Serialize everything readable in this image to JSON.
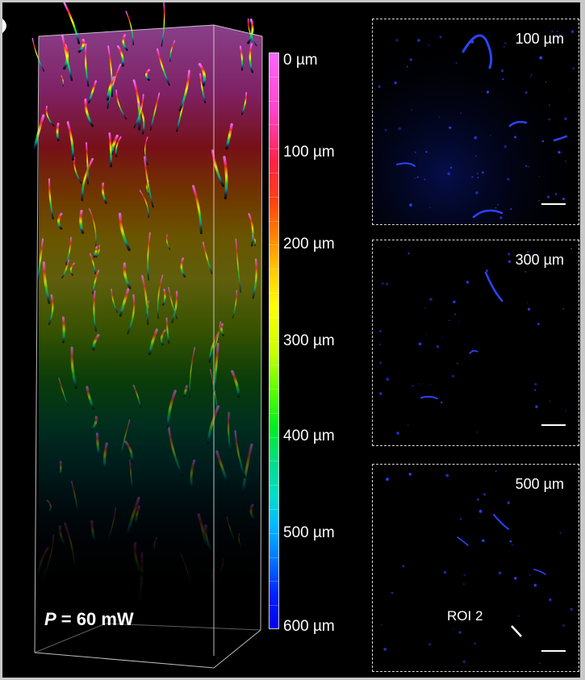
{
  "power_label": {
    "var": "P",
    "rest": " = 60 mW"
  },
  "colorbar": {
    "labels": [
      "0 µm",
      "100 µm",
      "200 µm",
      "300 µm",
      "400 µm",
      "500 µm",
      "600 µm"
    ]
  },
  "panels": [
    {
      "depth": "100 µm"
    },
    {
      "depth": "300 µm"
    },
    {
      "depth": "500 µm",
      "roi": "ROI 2"
    }
  ],
  "colors": {
    "background": "#000000",
    "surface": "#ff66ff",
    "deep": "#0000ee",
    "vessel_panels": "#2244ff"
  }
}
